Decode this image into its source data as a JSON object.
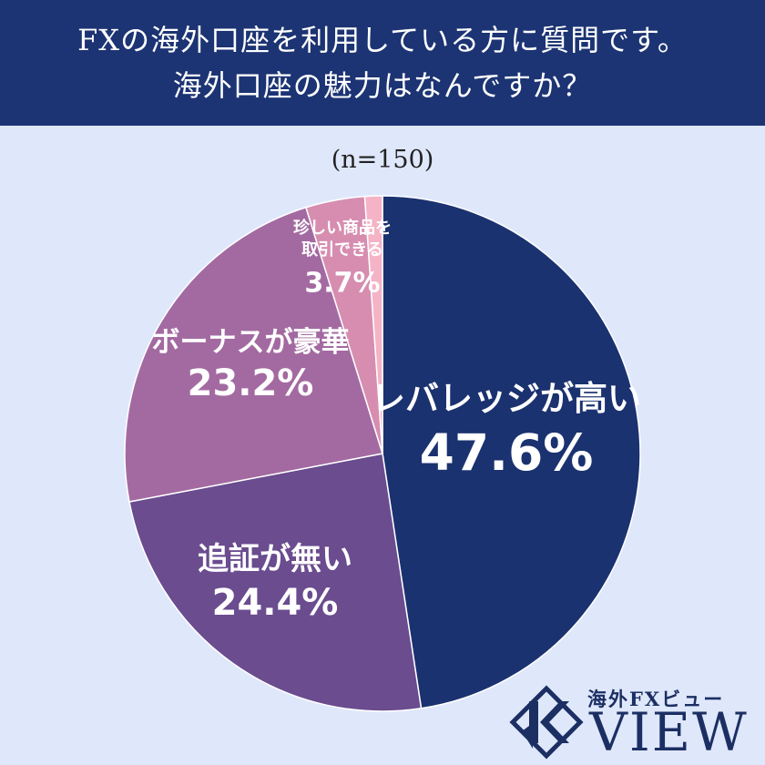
{
  "header": {
    "line1": "FXの海外口座を利用している方に質問です。",
    "line2": "海外口座の魅力はなんですか？"
  },
  "subtitle": "(n=150)",
  "chart_data": {
    "type": "pie",
    "start_angle_deg": 0,
    "direction": "clockwise",
    "slices": [
      {
        "label_lines": [
          "レバレッジが高い"
        ],
        "percent_text": "47.6%",
        "value": 47.6,
        "color": "#1b3270",
        "text_color": "#ffffff"
      },
      {
        "label_lines": [
          "追証が無い"
        ],
        "percent_text": "24.4%",
        "value": 24.4,
        "color": "#6a4c8f",
        "text_color": "#ffffff"
      },
      {
        "label_lines": [
          "ボーナスが豪華"
        ],
        "percent_text": "23.2%",
        "value": 23.2,
        "color": "#a36aa1",
        "text_color": "#ffffff"
      },
      {
        "label_lines": [
          "珍しい商品を",
          "取引できる"
        ],
        "percent_text": "3.7%",
        "value": 3.7,
        "color": "#d68db0",
        "text_color": "#ffffff"
      },
      {
        "label_lines": [],
        "percent_text": "",
        "value": 1.1,
        "color": "#f5b3c6",
        "text_color": "#ffffff"
      }
    ]
  },
  "logo": {
    "subtitle": "海外FXビュー",
    "name": "VIEW",
    "icon": "k-emblem-icon",
    "color": "#1c2f63"
  }
}
